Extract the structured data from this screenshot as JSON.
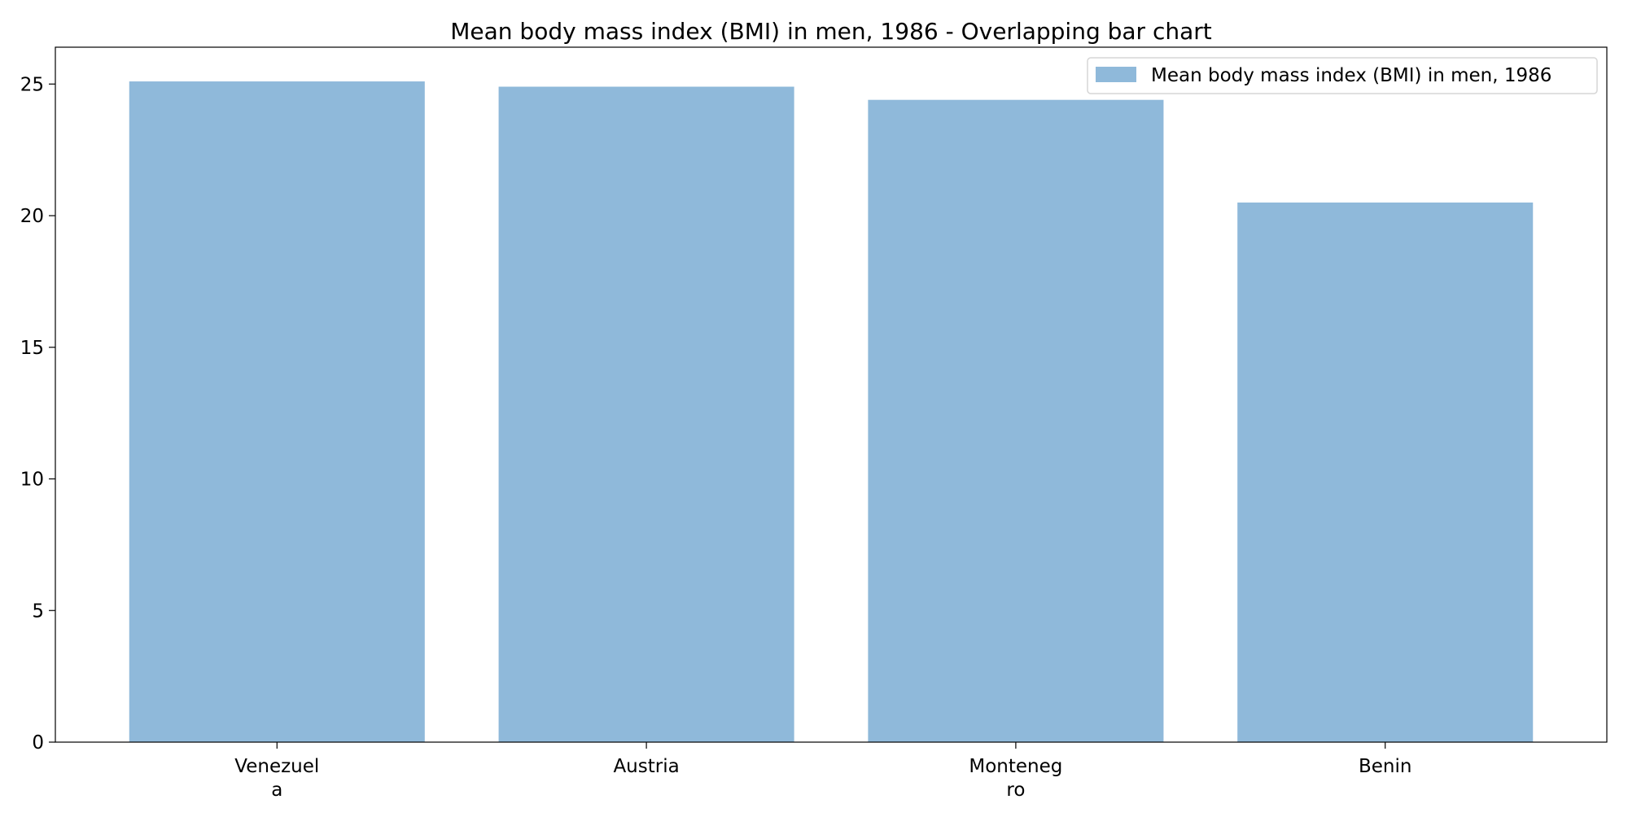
{
  "chart_data": {
    "type": "bar",
    "title": "Mean body mass index (BMI) in men, 1986 - Overlapping bar chart",
    "categories": [
      [
        "Venezuel",
        "a"
      ],
      [
        "Austria"
      ],
      [
        "Monteneg",
        "ro"
      ],
      [
        "Benin"
      ]
    ],
    "series": [
      {
        "name": "Mean body mass index (BMI) in men, 1986",
        "values": [
          25.1,
          24.9,
          24.4,
          20.5
        ],
        "color": "#8fb9da"
      }
    ],
    "ylim": [
      0,
      26.4
    ],
    "yticks": [
      0,
      5,
      10,
      15,
      20,
      25
    ],
    "grid": false,
    "legend_position": "top-right"
  }
}
